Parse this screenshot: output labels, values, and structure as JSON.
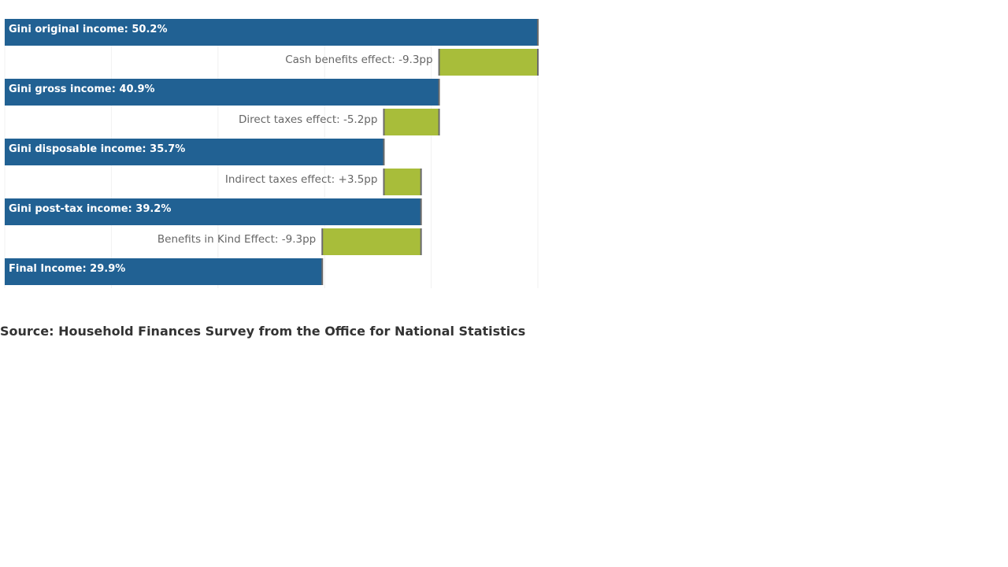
{
  "chart_data": {
    "type": "bar",
    "orientation": "horizontal",
    "style": "waterfall",
    "xlim": [
      0,
      50.2
    ],
    "grid": true,
    "colors": {
      "total": "#216193",
      "effect": "#a8bd3a",
      "connector": "#6b6b6b",
      "grid": "#f0f0f0"
    },
    "bars": [
      {
        "kind": "total",
        "label": "Gini original income: 50.2%",
        "start": 0,
        "end": 50.2
      },
      {
        "kind": "effect",
        "label": "Cash benefits effect: -9.3pp",
        "start": 40.9,
        "end": 50.2
      },
      {
        "kind": "total",
        "label": "Gini gross income: 40.9%",
        "start": 0,
        "end": 40.9
      },
      {
        "kind": "effect",
        "label": "Direct taxes effect: -5.2pp",
        "start": 35.7,
        "end": 40.9
      },
      {
        "kind": "total",
        "label": "Gini disposable income: 35.7%",
        "start": 0,
        "end": 35.7
      },
      {
        "kind": "effect",
        "label": "Indirect taxes effect: +3.5pp",
        "start": 35.7,
        "end": 39.2
      },
      {
        "kind": "total",
        "label": "Gini post-tax income: 39.2%",
        "start": 0,
        "end": 39.2
      },
      {
        "kind": "effect",
        "label": "Benefits in Kind Effect: -9.3pp",
        "start": 29.9,
        "end": 39.2
      },
      {
        "kind": "total",
        "label": "Final Income: 29.9%",
        "start": 0,
        "end": 29.9
      }
    ]
  },
  "source": "Source: Household Finances Survey from the Office for National Statistics"
}
